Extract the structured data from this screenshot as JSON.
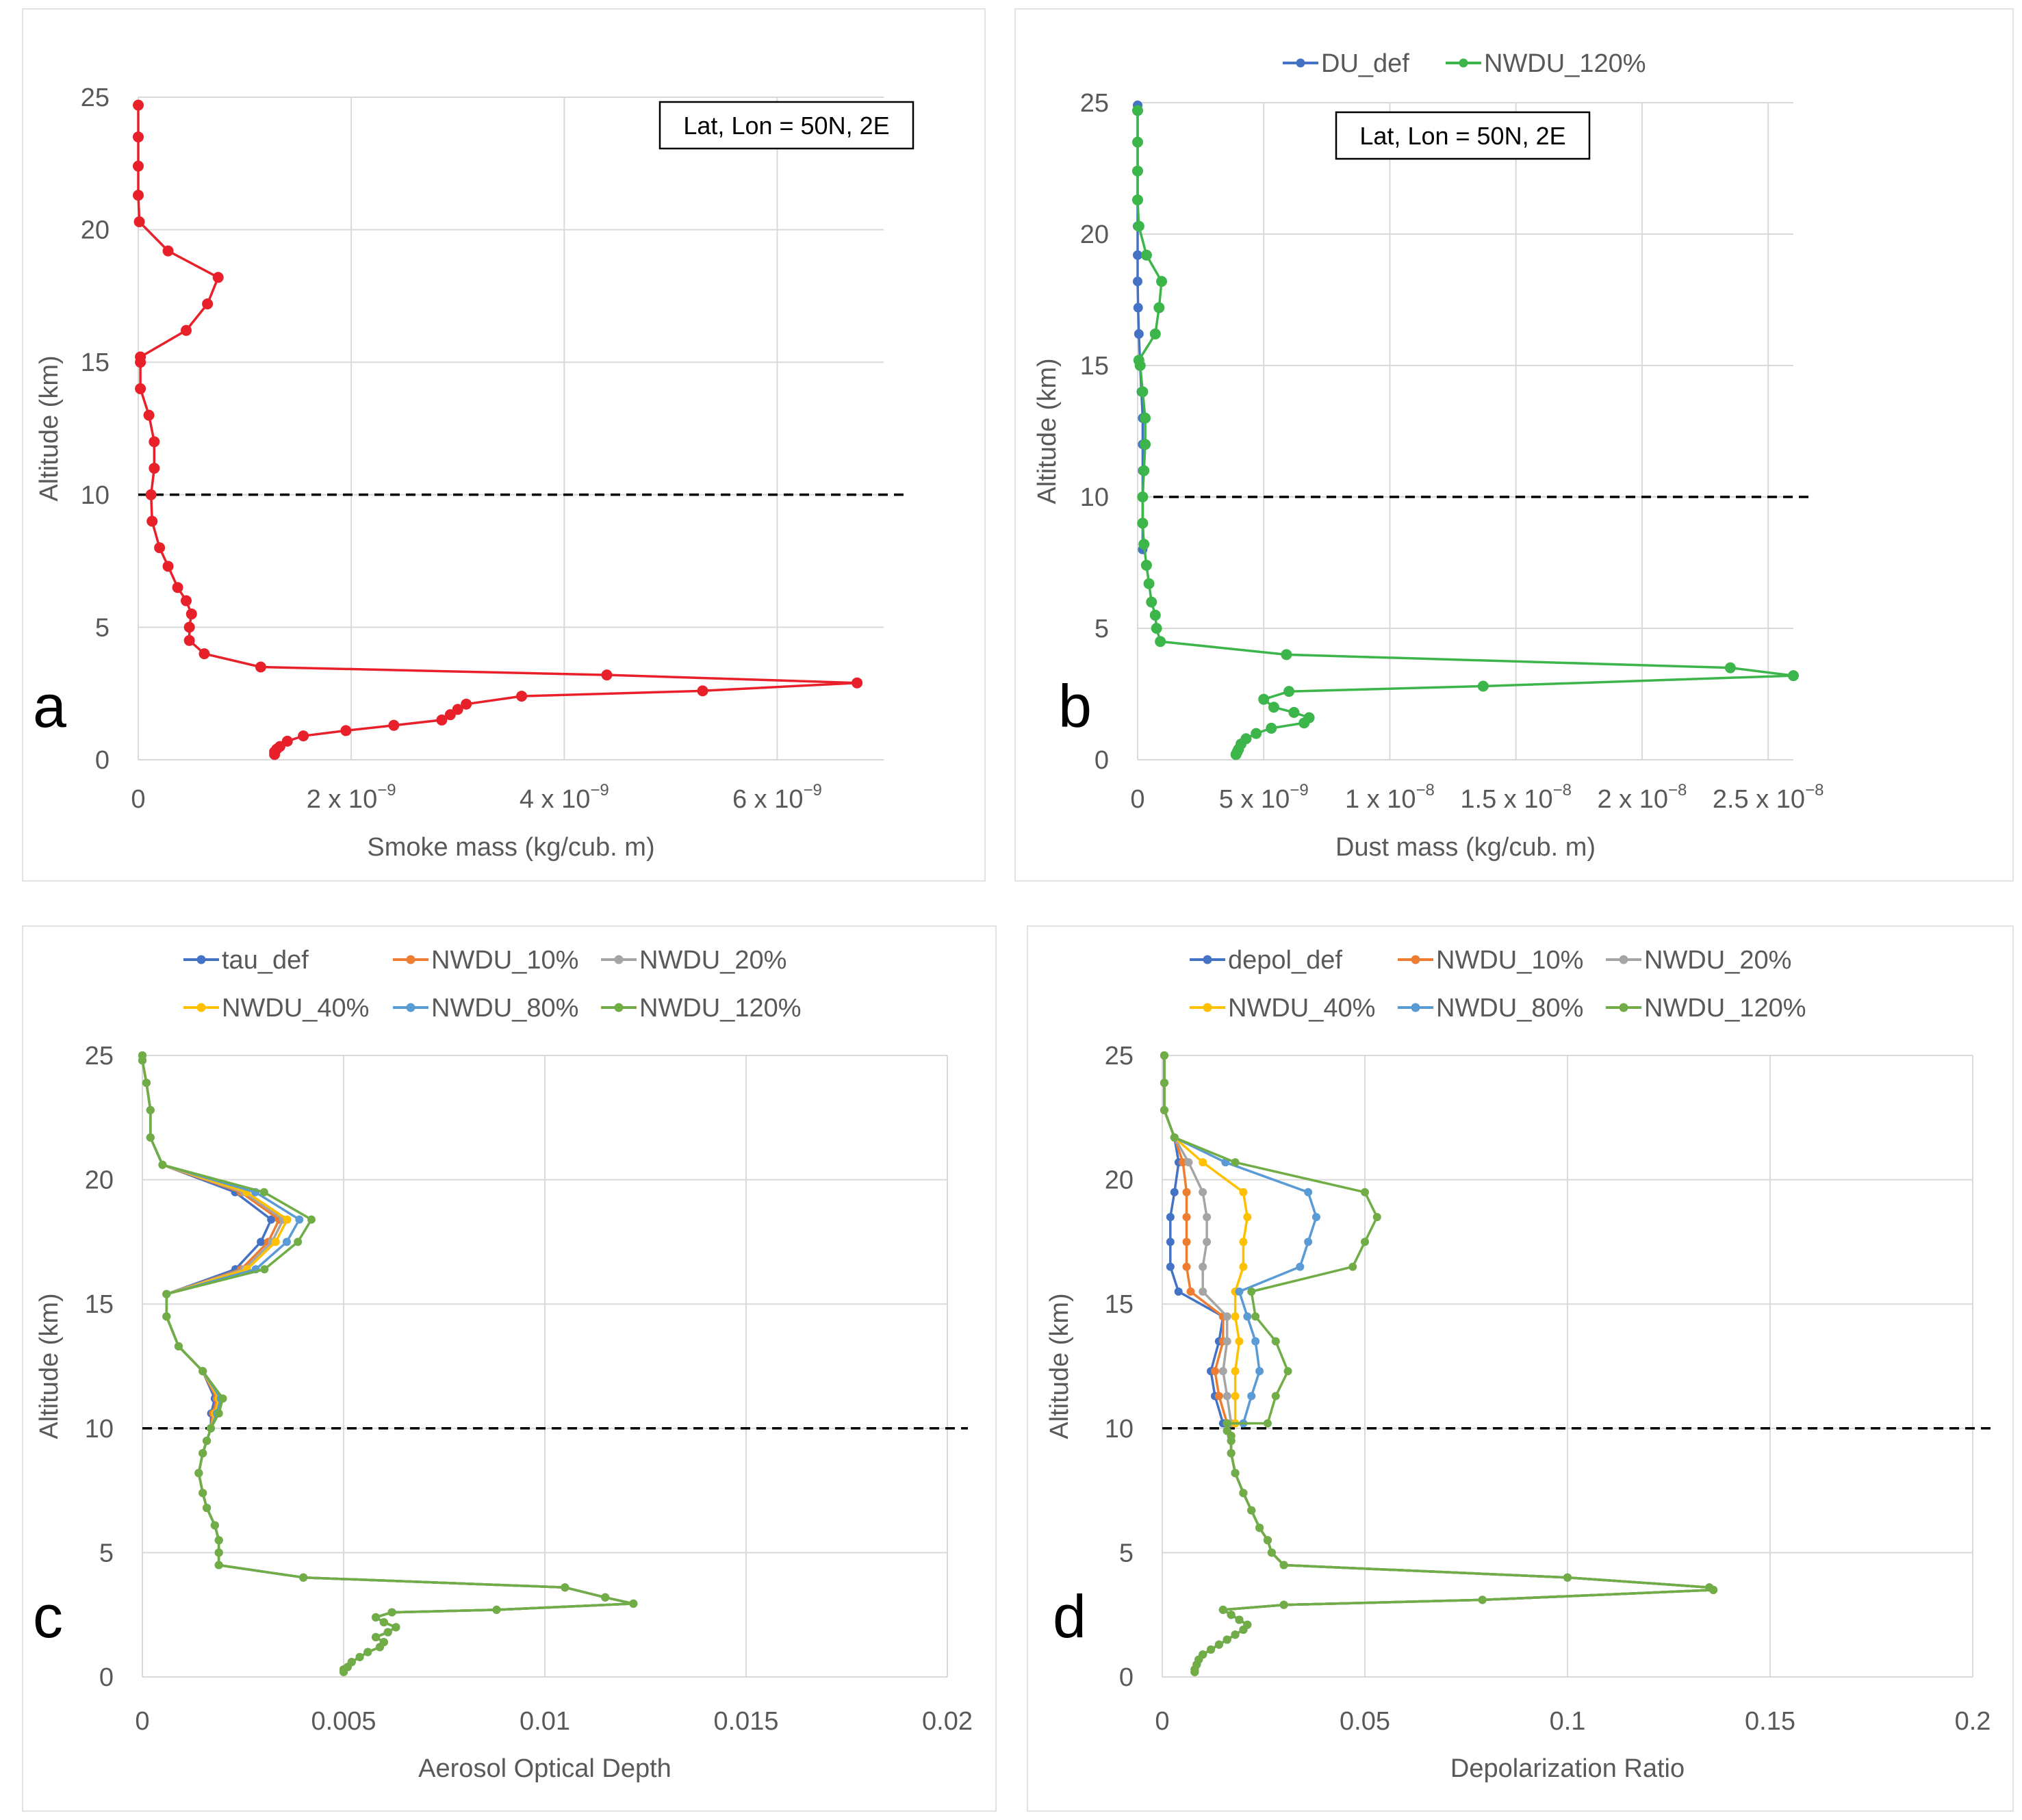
{
  "chart_data": [
    {
      "panel": "a",
      "type": "line",
      "xlabel": "Smoke mass (kg/cub. m)",
      "ylabel": "Altitude (km)",
      "xlim": [
        0,
        7e-09
      ],
      "ylim": [
        0,
        25
      ],
      "x_ticks": [
        {
          "v": 0,
          "mant": "0",
          "exp": ""
        },
        {
          "v": 2e-09,
          "mant": "2 x 10",
          "exp": "−9"
        },
        {
          "v": 4e-09,
          "mant": "4 x 10",
          "exp": "−9"
        },
        {
          "v": 6e-09,
          "mant": "6 x 10",
          "exp": "−9"
        }
      ],
      "y_ticks": [
        0,
        5,
        10,
        15,
        20,
        25
      ],
      "grid": true,
      "annotation": "Lat, Lon = 50N, 2E",
      "ref_line_y": 10,
      "legend": false,
      "series": [
        {
          "name": "Smoke",
          "color": "#e8202a",
          "x": [
            1.28e-09,
            1.28e-09,
            1.3e-09,
            1.33e-09,
            1.4e-09,
            1.55e-09,
            1.95e-09,
            2.4e-09,
            2.85e-09,
            2.93e-09,
            3e-09,
            3.08e-09,
            3.6e-09,
            5.3e-09,
            6.75e-09,
            4.4e-09,
            1.15e-09,
            6.2e-10,
            4.8e-10,
            4.8e-10,
            5e-10,
            4.5e-10,
            3.7e-10,
            2.8e-10,
            2e-10,
            1.3e-10,
            1.2e-10,
            1.5e-10,
            1.5e-10,
            1e-10,
            2e-11,
            2e-11,
            2e-11,
            4.5e-10,
            6.5e-10,
            7.5e-10,
            2.8e-10,
            1e-11,
            0.0,
            0.0,
            0.0,
            0.0
          ],
          "y": [
            0.2,
            0.3,
            0.4,
            0.5,
            0.7,
            0.9,
            1.1,
            1.3,
            1.5,
            1.7,
            1.9,
            2.1,
            2.4,
            2.6,
            2.9,
            3.2,
            3.5,
            4.0,
            4.5,
            5.0,
            5.5,
            6.0,
            6.5,
            7.3,
            8.0,
            9.0,
            10.0,
            11.0,
            12.0,
            13.0,
            14.0,
            15.0,
            15.2,
            16.2,
            17.2,
            18.2,
            19.2,
            20.3,
            21.3,
            22.4,
            23.5,
            24.7
          ]
        }
      ]
    },
    {
      "panel": "b",
      "type": "line",
      "xlabel": "Dust mass (kg/cub. m)",
      "ylabel": "Altitude (km)",
      "xlim": [
        0,
        2.6e-08
      ],
      "ylim": [
        0,
        25
      ],
      "x_ticks": [
        {
          "v": 0,
          "mant": "0",
          "exp": ""
        },
        {
          "v": 5e-09,
          "mant": "5 x 10",
          "exp": "−9"
        },
        {
          "v": 1e-08,
          "mant": "1 x 10",
          "exp": "−8"
        },
        {
          "v": 1.5e-08,
          "mant": "1.5 x 10",
          "exp": "−8"
        },
        {
          "v": 2e-08,
          "mant": "2 x 10",
          "exp": "−8"
        },
        {
          "v": 2.5e-08,
          "mant": "2.5 x 10",
          "exp": "−8"
        }
      ],
      "y_ticks": [
        0,
        5,
        10,
        15,
        20,
        25
      ],
      "grid": true,
      "annotation": "Lat, Lon = 50N, 2E",
      "ref_line_y": 10,
      "legend": true,
      "legend_position": "top-center",
      "series": [
        {
          "name": "DU_def",
          "color": "#4472c4",
          "x": [
            2e-10,
            2e-10,
            2e-10,
            2e-10,
            2e-10,
            2e-10,
            1.5e-10,
            1e-10,
            5e-11,
            2e-11,
            0.0,
            0.0,
            0.0,
            0.0,
            0.0,
            0.0,
            0.0,
            0.0
          ],
          "y": [
            8.0,
            9.0,
            10.0,
            11.0,
            12.0,
            13.0,
            14.0,
            15.0,
            16.2,
            17.2,
            18.2,
            19.2,
            20.3,
            21.3,
            22.4,
            23.5,
            24.7,
            24.9
          ]
        },
        {
          "name": "NWDU_120%",
          "color": "#3cb54a",
          "x": [
            3.9e-09,
            3.95e-09,
            4e-09,
            4.1e-09,
            4.3e-09,
            4.7e-09,
            5.3e-09,
            6.6e-09,
            6.8e-09,
            6.2e-09,
            5.4e-09,
            5e-09,
            6e-09,
            1.37e-08,
            2.6e-08,
            2.35e-08,
            5.9e-09,
            9e-10,
            7.5e-10,
            7e-10,
            5.5e-10,
            4.5e-10,
            3.5e-10,
            2.5e-10,
            2e-10,
            2e-10,
            2.5e-10,
            3e-10,
            3e-10,
            2e-10,
            1e-10,
            5e-11,
            7e-10,
            8.5e-10,
            9.5e-10,
            3.5e-10,
            5e-11,
            0.0,
            0.0,
            0.0,
            0.0
          ],
          "y": [
            0.2,
            0.3,
            0.4,
            0.6,
            0.8,
            1.0,
            1.2,
            1.4,
            1.6,
            1.8,
            2.0,
            2.3,
            2.6,
            2.8,
            3.2,
            3.5,
            4.0,
            4.5,
            5.0,
            5.5,
            6.0,
            6.7,
            7.4,
            8.2,
            9.0,
            10.0,
            11.0,
            12.0,
            13.0,
            14.0,
            15.0,
            15.2,
            16.2,
            17.2,
            18.2,
            19.2,
            20.3,
            21.3,
            22.4,
            23.5,
            24.7
          ]
        }
      ]
    },
    {
      "panel": "c",
      "type": "line",
      "xlabel": "Aerosol Optical Depth",
      "ylabel": "Altitude (km)",
      "xlim": [
        0,
        0.02
      ],
      "ylim": [
        0,
        25
      ],
      "x_ticks": [
        {
          "v": 0,
          "mant": "0",
          "exp": ""
        },
        {
          "v": 0.005,
          "mant": "0.005",
          "exp": ""
        },
        {
          "v": 0.01,
          "mant": "0.01",
          "exp": ""
        },
        {
          "v": 0.015,
          "mant": "0.015",
          "exp": ""
        },
        {
          "v": 0.02,
          "mant": "0.02",
          "exp": ""
        }
      ],
      "y_ticks": [
        0,
        5,
        10,
        15,
        20,
        25
      ],
      "grid": true,
      "ref_line_y": 10,
      "legend": true,
      "legend_position": "top-center",
      "series": [
        {
          "name": "tau_def",
          "color": "#4472c4"
        },
        {
          "name": "NWDU_10%",
          "color": "#ed7d31"
        },
        {
          "name": "NWDU_20%",
          "color": "#a5a5a5"
        },
        {
          "name": "NWDU_40%",
          "color": "#ffc000"
        },
        {
          "name": "NWDU_80%",
          "color": "#5b9bd5"
        },
        {
          "name": "NWDU_120%",
          "color": "#70ad47"
        }
      ],
      "base_profile": {
        "x": [
          0.005,
          0.005,
          0.0051,
          0.0052,
          0.0054,
          0.0056,
          0.0059,
          0.006,
          0.0058,
          0.0061,
          0.0063,
          0.006,
          0.0058,
          0.0062,
          0.0088,
          0.0122,
          0.0115,
          0.0105,
          0.004,
          0.0019,
          0.0019,
          0.0019,
          0.0018,
          0.0016,
          0.0015,
          0.0014,
          0.0015,
          0.0016,
          0.0017
        ],
        "y": [
          0.2,
          0.3,
          0.4,
          0.6,
          0.8,
          1.0,
          1.2,
          1.4,
          1.6,
          1.8,
          2.0,
          2.2,
          2.4,
          2.6,
          2.7,
          2.95,
          3.2,
          3.6,
          4.0,
          4.5,
          5.0,
          5.5,
          6.1,
          6.8,
          7.4,
          8.2,
          9.0,
          9.5,
          10.0
        ]
      },
      "upper_common": {
        "x": [
          0.00165,
          0.00175,
          0.00195,
          0.0015,
          0.0009,
          0.0006,
          0.0006
        ],
        "y": [
          10.0,
          10.6,
          11.2,
          12.3,
          13.3,
          14.5,
          15.4
        ]
      },
      "top_common": {
        "x": [
          0.0005,
          0.0002,
          0.0002,
          0.0001,
          0.0,
          0.0
        ],
        "y": [
          20.6,
          21.7,
          22.8,
          23.9,
          24.8,
          25.0
        ]
      },
      "hump_peak_x": [
        0.0032,
        0.0034,
        0.0035,
        0.0036,
        0.0039,
        0.0042
      ],
      "hump_y": [
        15.4,
        16.4,
        17.5,
        18.4,
        19.5,
        20.6
      ],
      "mid_bulge_x": [
        0.0018,
        0.00185,
        0.0019,
        0.0019,
        0.00195,
        0.002
      ]
    },
    {
      "panel": "d",
      "type": "line",
      "xlabel": "Depolarization Ratio",
      "ylabel": "Altitude (km)",
      "xlim": [
        0,
        0.2
      ],
      "ylim": [
        0,
        25
      ],
      "x_ticks": [
        {
          "v": 0,
          "mant": "0",
          "exp": ""
        },
        {
          "v": 0.05,
          "mant": "0.05",
          "exp": ""
        },
        {
          "v": 0.1,
          "mant": "0.1",
          "exp": ""
        },
        {
          "v": 0.15,
          "mant": "0.15",
          "exp": ""
        },
        {
          "v": 0.2,
          "mant": "0.2",
          "exp": ""
        }
      ],
      "y_ticks": [
        0,
        5,
        10,
        15,
        20,
        25
      ],
      "grid": true,
      "ref_line_y": 10,
      "legend": true,
      "legend_position": "top-center",
      "series": [
        {
          "name": "depol_def",
          "color": "#4472c4",
          "upper_x": [
            0.003,
            0.002,
            0.002,
            0.002,
            0.004,
            0.015,
            0.014,
            0.012,
            0.013,
            0.015
          ]
        },
        {
          "name": "NWDU_10%",
          "color": "#ed7d31",
          "upper_x": [
            0.006,
            0.006,
            0.006,
            0.006,
            0.007,
            0.015,
            0.015,
            0.013,
            0.014,
            0.016
          ]
        },
        {
          "name": "NWDU_20%",
          "color": "#a5a5a5",
          "upper_x": [
            0.01,
            0.011,
            0.011,
            0.01,
            0.01,
            0.016,
            0.016,
            0.015,
            0.016,
            0.017
          ]
        },
        {
          "name": "NWDU_40%",
          "color": "#ffc000",
          "upper_x": [
            0.02,
            0.021,
            0.02,
            0.02,
            0.018,
            0.018,
            0.019,
            0.018,
            0.018,
            0.018
          ]
        },
        {
          "name": "NWDU_80%",
          "color": "#5b9bd5",
          "upper_x": [
            0.036,
            0.038,
            0.036,
            0.034,
            0.019,
            0.021,
            0.023,
            0.024,
            0.022,
            0.02
          ]
        },
        {
          "name": "NWDU_120%",
          "color": "#70ad47",
          "upper_x": [
            0.05,
            0.053,
            0.05,
            0.047,
            0.022,
            0.023,
            0.028,
            0.031,
            0.028,
            0.026
          ]
        }
      ],
      "upper_y": [
        19.5,
        18.5,
        17.5,
        16.5,
        15.5,
        14.5,
        13.5,
        12.3,
        11.3,
        10.2
      ],
      "top_x": [
        0.015,
        0.003,
        0.0005,
        0.0005,
        0.0005
      ],
      "top_y": [
        20.7,
        21.7,
        22.8,
        23.9,
        25.0
      ],
      "base_profile": {
        "x": [
          0.008,
          0.008,
          0.0085,
          0.009,
          0.01,
          0.012,
          0.014,
          0.016,
          0.018,
          0.02,
          0.021,
          0.019,
          0.017,
          0.015,
          0.03,
          0.079,
          0.136,
          0.135,
          0.1,
          0.03,
          0.027,
          0.026,
          0.024,
          0.022,
          0.02,
          0.018,
          0.017,
          0.017,
          0.017,
          0.016,
          0.016
        ],
        "y": [
          0.2,
          0.3,
          0.5,
          0.7,
          0.9,
          1.1,
          1.3,
          1.5,
          1.7,
          1.9,
          2.1,
          2.3,
          2.5,
          2.7,
          2.9,
          3.1,
          3.5,
          3.6,
          4.0,
          4.5,
          5.0,
          5.5,
          6.0,
          6.7,
          7.4,
          8.2,
          9.0,
          9.5,
          9.7,
          9.9,
          10.2
        ]
      }
    }
  ]
}
